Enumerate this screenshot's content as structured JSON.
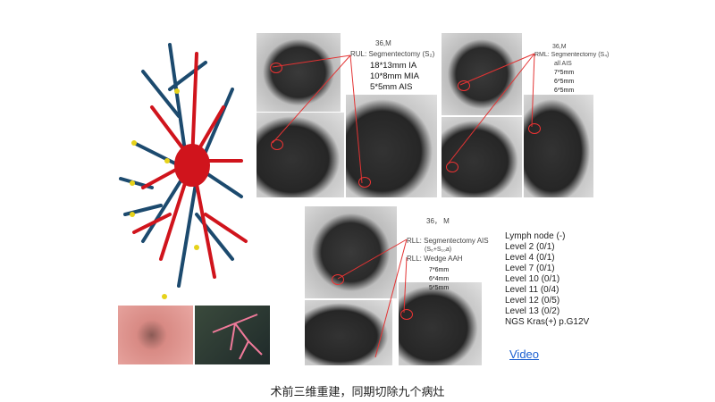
{
  "case1": {
    "header": "36,M",
    "procedure": "RUL: Segmentectomy (S₂)",
    "lesions": [
      "18*13mm  IA",
      "10*8mm  MIA",
      "5*5mm  AIS"
    ]
  },
  "case2": {
    "header": "36,M",
    "procedure": "RML: Segmentectomy (S₄)",
    "pathology": "all  AIS",
    "lesions": [
      "7*5mm",
      "6*5mm",
      "6*5mm"
    ]
  },
  "case3": {
    "header": "36， M",
    "procedure1": "RLL:  Segmentectomy AIS",
    "procedure1_sub": "(S₆+S₁₀a)",
    "procedure2": "RLL:  Wedge AAH",
    "lesions": [
      "7*6mm",
      "6*4mm",
      "5*5mm"
    ]
  },
  "lymph": {
    "title": "Lymph node (-)",
    "levels": [
      "Level 2    (0/1)",
      "Level 4    (0/1)",
      "Level 7    (0/1)",
      "Level 10   (0/1)",
      "Level 11   (0/4)",
      "Level 12   (0/5)",
      "Level 13   (0/2)"
    ],
    "ngs": "NGS   Kras(+) p.G12V"
  },
  "video_link": "Video",
  "caption": "术前三维重建，同期切除九个病灶",
  "colors": {
    "artery": "#1c4a6e",
    "vein": "#d0141c",
    "nodule": "#e6d21a",
    "link": "#1a5fd1",
    "marker": "#e33333"
  }
}
